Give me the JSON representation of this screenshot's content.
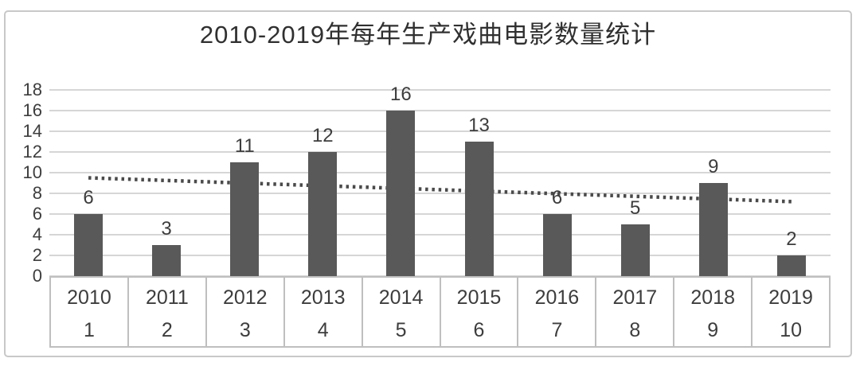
{
  "chart_data": {
    "type": "bar",
    "title": "2010-2019年每年生产戏曲电影数量统计",
    "categories": [
      "2010",
      "2011",
      "2012",
      "2013",
      "2014",
      "2015",
      "2016",
      "2017",
      "2018",
      "2019"
    ],
    "category_secondary_labels": [
      "1",
      "2",
      "3",
      "4",
      "5",
      "6",
      "7",
      "8",
      "9",
      "10"
    ],
    "values": [
      6,
      3,
      11,
      12,
      16,
      13,
      6,
      5,
      9,
      2
    ],
    "data_labels": true,
    "y_ticks": [
      0,
      2,
      4,
      6,
      8,
      10,
      12,
      14,
      16,
      18
    ],
    "ylim": [
      0,
      18
    ],
    "grid": true,
    "legend": "none",
    "bar_color": "#595959",
    "text_color": "#3d3d3d",
    "title_color": "#303030",
    "gridline_color": "#d6d6d6",
    "table_border_color": "#bfbfbf",
    "frame_border_color": "#c8c8c8",
    "trendline": {
      "type": "linear",
      "style": "dotted",
      "color": "#4a4a4a",
      "start_value": 9.5,
      "end_value": 7.2
    }
  }
}
